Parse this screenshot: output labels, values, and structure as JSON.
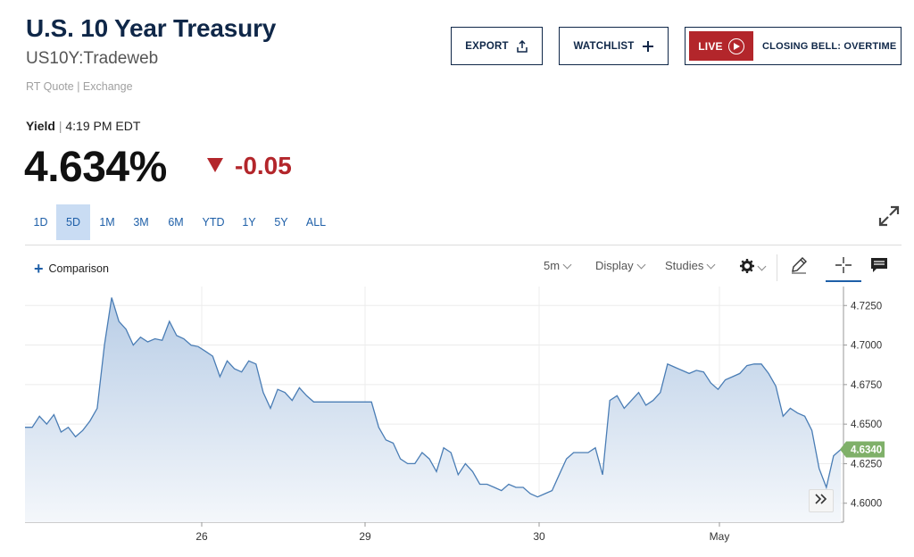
{
  "header": {
    "title": "U.S. 10 Year Treasury",
    "symbol": "US10Y:Tradeweb",
    "quote_source": "RT Quote | Exchange"
  },
  "buttons": {
    "export": "EXPORT",
    "watchlist": "WATCHLIST",
    "live": "LIVE",
    "closing_bell": "CLOSING BELL: OVERTIME"
  },
  "quote": {
    "yield_label": "Yield",
    "time": "4:19 PM EDT",
    "price": "4.634%",
    "change": "-0.05"
  },
  "ranges": [
    "1D",
    "5D",
    "1M",
    "3M",
    "6M",
    "YTD",
    "1Y",
    "5Y",
    "ALL"
  ],
  "active_range": "5D",
  "toolbar": {
    "comparison": "Comparison",
    "interval": "5m",
    "display": "Display",
    "studies": "Studies"
  },
  "icons": {
    "export": "share-icon",
    "watchlist": "plus-icon",
    "live": "play-circle-icon",
    "expand": "expand-icon",
    "gear": "gear-icon",
    "draw": "pencil-icon",
    "crosshair": "crosshair-icon",
    "comment": "comment-icon",
    "next": "double-chevron-icon"
  },
  "colors": {
    "navy": "#0f2748",
    "red": "#b3262b",
    "accent_blue": "#1e5fa8",
    "line": "#4a7db5",
    "last_price_bg": "#7fb069"
  },
  "chart_data": {
    "type": "area",
    "x_ticks": [
      "26",
      "29",
      "30",
      "May"
    ],
    "y_ticks": [
      "4.7250",
      "4.7000",
      "4.6750",
      "4.6500",
      "4.6250",
      "4.6000"
    ],
    "ylim": [
      4.588,
      4.737
    ],
    "last_value": "4.6340",
    "series": [
      {
        "values": [
          4.648,
          4.648,
          4.655,
          4.65,
          4.656,
          4.645,
          4.648,
          4.642,
          4.646,
          4.652,
          4.66,
          4.7,
          4.73,
          4.715,
          4.71,
          4.7,
          4.705,
          4.702,
          4.704,
          4.703,
          4.715,
          4.706,
          4.704,
          4.7,
          4.699,
          4.696,
          4.693,
          4.68,
          4.69,
          4.685,
          4.683,
          4.69,
          4.688,
          4.67,
          4.66,
          4.672,
          4.67,
          4.665,
          4.673,
          4.668,
          4.664,
          4.664,
          4.664,
          4.664,
          4.664,
          4.664,
          4.664,
          4.664,
          4.664,
          4.648,
          4.64,
          4.638,
          4.628,
          4.625,
          4.625,
          4.632,
          4.628,
          4.62,
          4.635,
          4.632,
          4.618,
          4.625,
          4.62,
          4.612,
          4.612,
          4.61,
          4.608,
          4.612,
          4.61,
          4.61,
          4.606,
          4.604,
          4.606,
          4.608,
          4.618,
          4.628,
          4.632,
          4.632,
          4.632,
          4.635,
          4.618,
          4.665,
          4.668,
          4.66,
          4.665,
          4.67,
          4.662,
          4.665,
          4.67,
          4.688,
          4.686,
          4.684,
          4.682,
          4.684,
          4.683,
          4.676,
          4.672,
          4.678,
          4.68,
          4.682,
          4.687,
          4.688,
          4.688,
          4.682,
          4.674,
          4.655,
          4.66,
          4.657,
          4.655,
          4.646,
          4.622,
          4.61,
          4.63,
          4.634
        ]
      }
    ],
    "grid": true
  }
}
